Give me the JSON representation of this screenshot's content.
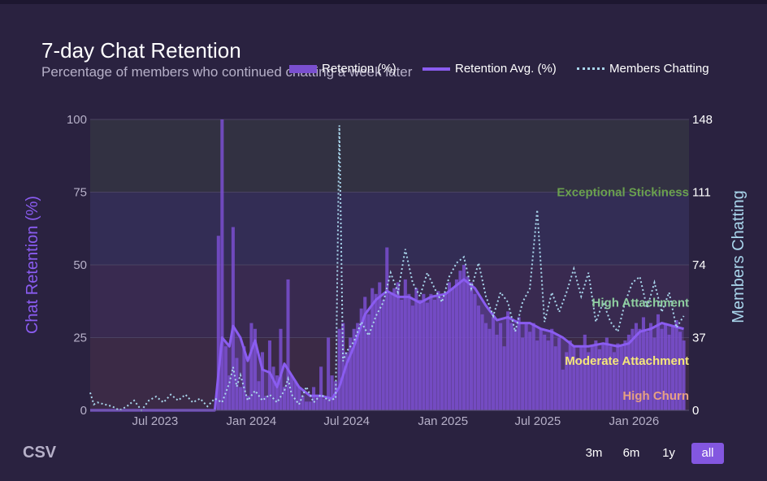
{
  "title": "7-day Chat Retention",
  "subtitle": "Percentage of members who continued chatting a week later",
  "legend": {
    "retention": "Retention (%)",
    "avg": "Retention Avg. (%)",
    "members": "Members Chatting"
  },
  "colors": {
    "background": "#2a2240",
    "bars": "#7a4fd0",
    "avg_line": "#8a5cf0",
    "members_line": "#a9d6ec",
    "exceptional": "#6aa04f",
    "high": "#8fcfa0",
    "moderate": "#f5e77a",
    "churn": "#e7a083"
  },
  "csv_label": "CSV",
  "range_buttons": [
    {
      "label": "3m",
      "active": false
    },
    {
      "label": "6m",
      "active": false
    },
    {
      "label": "1y",
      "active": false
    },
    {
      "label": "all",
      "active": true
    }
  ],
  "chart_data": {
    "type": "bar",
    "ylabel": "Chat Retention (%)",
    "y2label": "Members Chatting",
    "ylim": [
      0,
      100
    ],
    "y2lim": [
      0,
      148
    ],
    "y_ticks": [
      0,
      25,
      50,
      75,
      100
    ],
    "y2_ticks": [
      0,
      37,
      74,
      111,
      148
    ],
    "x_ticks": [
      {
        "date": "2023-07-01",
        "label": "Jul 2023"
      },
      {
        "date": "2024-01-01",
        "label": "Jan 2024"
      },
      {
        "date": "2024-07-01",
        "label": "Jul 2024"
      },
      {
        "date": "2025-01-01",
        "label": "Jan 2025"
      },
      {
        "date": "2025-07-01",
        "label": "Jul 2025"
      },
      {
        "date": "2026-01-01",
        "label": "Jan 2026"
      }
    ],
    "xlim": [
      "2023-02-27",
      "2026-04-16"
    ],
    "bands": [
      {
        "label": "Exceptional Stickiness",
        "y": 75,
        "range": [
          75,
          100
        ]
      },
      {
        "label": "High Attachment",
        "y": 37,
        "range": [
          50,
          75
        ]
      },
      {
        "label": "Moderate Attachment",
        "y": 17,
        "range": [
          25,
          50
        ]
      },
      {
        "label": "High Churn",
        "y": 5,
        "range": [
          0,
          25
        ]
      }
    ],
    "weekly_retention": [
      {
        "date": "2023-10-30",
        "value": 60
      },
      {
        "date": "2023-11-06",
        "value": 100
      },
      {
        "date": "2023-11-13",
        "value": 22
      },
      {
        "date": "2023-11-20",
        "value": 12
      },
      {
        "date": "2023-11-27",
        "value": 63
      },
      {
        "date": "2023-12-04",
        "value": 18
      },
      {
        "date": "2023-12-11",
        "value": 8
      },
      {
        "date": "2023-12-18",
        "value": 22
      },
      {
        "date": "2023-12-25",
        "value": 5
      },
      {
        "date": "2024-01-01",
        "value": 30
      },
      {
        "date": "2024-01-08",
        "value": 28
      },
      {
        "date": "2024-01-15",
        "value": 10
      },
      {
        "date": "2024-01-22",
        "value": 20
      },
      {
        "date": "2024-01-29",
        "value": 5
      },
      {
        "date": "2024-02-05",
        "value": 24
      },
      {
        "date": "2024-02-12",
        "value": 15
      },
      {
        "date": "2024-02-19",
        "value": 12
      },
      {
        "date": "2024-02-26",
        "value": 28
      },
      {
        "date": "2024-03-04",
        "value": 8
      },
      {
        "date": "2024-03-11",
        "value": 45
      },
      {
        "date": "2024-03-18",
        "value": 12
      },
      {
        "date": "2024-03-25",
        "value": 10
      },
      {
        "date": "2024-04-01",
        "value": 8
      },
      {
        "date": "2024-04-08",
        "value": 5
      },
      {
        "date": "2024-04-15",
        "value": 3
      },
      {
        "date": "2024-04-22",
        "value": 3
      },
      {
        "date": "2024-04-29",
        "value": 8
      },
      {
        "date": "2024-05-06",
        "value": 5
      },
      {
        "date": "2024-05-13",
        "value": 15
      },
      {
        "date": "2024-05-20",
        "value": 4
      },
      {
        "date": "2024-05-27",
        "value": 25
      },
      {
        "date": "2024-06-03",
        "value": 12
      },
      {
        "date": "2024-06-10",
        "value": 10
      },
      {
        "date": "2024-06-17",
        "value": 28
      },
      {
        "date": "2024-06-24",
        "value": 30
      },
      {
        "date": "2024-07-01",
        "value": 20
      },
      {
        "date": "2024-07-08",
        "value": 25
      },
      {
        "date": "2024-07-15",
        "value": 28
      },
      {
        "date": "2024-07-22",
        "value": 30
      },
      {
        "date": "2024-07-29",
        "value": 35
      },
      {
        "date": "2024-08-05",
        "value": 39
      },
      {
        "date": "2024-08-12",
        "value": 33
      },
      {
        "date": "2024-08-19",
        "value": 42
      },
      {
        "date": "2024-08-26",
        "value": 40
      },
      {
        "date": "2024-09-02",
        "value": 44
      },
      {
        "date": "2024-09-09",
        "value": 38
      },
      {
        "date": "2024-09-16",
        "value": 56
      },
      {
        "date": "2024-09-23",
        "value": 40
      },
      {
        "date": "2024-09-30",
        "value": 42
      },
      {
        "date": "2024-10-07",
        "value": 44
      },
      {
        "date": "2024-10-14",
        "value": 38
      },
      {
        "date": "2024-10-21",
        "value": 45
      },
      {
        "date": "2024-10-28",
        "value": 40
      },
      {
        "date": "2024-11-04",
        "value": 36
      },
      {
        "date": "2024-11-11",
        "value": 42
      },
      {
        "date": "2024-11-18",
        "value": 38
      },
      {
        "date": "2024-11-25",
        "value": 40
      },
      {
        "date": "2024-12-02",
        "value": 37
      },
      {
        "date": "2024-12-09",
        "value": 40
      },
      {
        "date": "2024-12-16",
        "value": 38
      },
      {
        "date": "2024-12-23",
        "value": 41
      },
      {
        "date": "2024-12-30",
        "value": 39
      },
      {
        "date": "2025-01-06",
        "value": 40
      },
      {
        "date": "2025-01-13",
        "value": 44
      },
      {
        "date": "2025-01-20",
        "value": 42
      },
      {
        "date": "2025-01-27",
        "value": 45
      },
      {
        "date": "2025-02-03",
        "value": 48
      },
      {
        "date": "2025-02-10",
        "value": 50
      },
      {
        "date": "2025-02-17",
        "value": 46
      },
      {
        "date": "2025-02-24",
        "value": 44
      },
      {
        "date": "2025-03-03",
        "value": 40
      },
      {
        "date": "2025-03-10",
        "value": 36
      },
      {
        "date": "2025-03-17",
        "value": 33
      },
      {
        "date": "2025-03-24",
        "value": 30
      },
      {
        "date": "2025-03-31",
        "value": 28
      },
      {
        "date": "2025-04-07",
        "value": 32
      },
      {
        "date": "2025-04-14",
        "value": 26
      },
      {
        "date": "2025-04-21",
        "value": 30
      },
      {
        "date": "2025-04-28",
        "value": 22
      },
      {
        "date": "2025-05-05",
        "value": 34
      },
      {
        "date": "2025-05-12",
        "value": 30
      },
      {
        "date": "2025-05-19",
        "value": 28
      },
      {
        "date": "2025-05-26",
        "value": 32
      },
      {
        "date": "2025-06-02",
        "value": 25
      },
      {
        "date": "2025-06-09",
        "value": 30
      },
      {
        "date": "2025-06-16",
        "value": 27
      },
      {
        "date": "2025-06-23",
        "value": 30
      },
      {
        "date": "2025-06-30",
        "value": 24
      },
      {
        "date": "2025-07-07",
        "value": 28
      },
      {
        "date": "2025-07-14",
        "value": 26
      },
      {
        "date": "2025-07-21",
        "value": 24
      },
      {
        "date": "2025-07-28",
        "value": 28
      },
      {
        "date": "2025-08-04",
        "value": 22
      },
      {
        "date": "2025-08-11",
        "value": 25
      },
      {
        "date": "2025-08-18",
        "value": 14
      },
      {
        "date": "2025-08-25",
        "value": 20
      },
      {
        "date": "2025-09-01",
        "value": 24
      },
      {
        "date": "2025-09-08",
        "value": 22
      },
      {
        "date": "2025-09-15",
        "value": 18
      },
      {
        "date": "2025-09-22",
        "value": 22
      },
      {
        "date": "2025-09-29",
        "value": 26
      },
      {
        "date": "2025-10-06",
        "value": 20
      },
      {
        "date": "2025-10-13",
        "value": 22
      },
      {
        "date": "2025-10-20",
        "value": 24
      },
      {
        "date": "2025-10-27",
        "value": 21
      },
      {
        "date": "2025-11-03",
        "value": 23
      },
      {
        "date": "2025-11-10",
        "value": 25
      },
      {
        "date": "2025-11-17",
        "value": 22
      },
      {
        "date": "2025-11-24",
        "value": 20
      },
      {
        "date": "2025-12-01",
        "value": 23
      },
      {
        "date": "2025-12-08",
        "value": 22
      },
      {
        "date": "2025-12-15",
        "value": 24
      },
      {
        "date": "2025-12-22",
        "value": 26
      },
      {
        "date": "2025-12-29",
        "value": 28
      },
      {
        "date": "2026-01-05",
        "value": 30
      },
      {
        "date": "2026-01-12",
        "value": 28
      },
      {
        "date": "2026-01-19",
        "value": 32
      },
      {
        "date": "2026-01-26",
        "value": 27
      },
      {
        "date": "2026-02-02",
        "value": 30
      },
      {
        "date": "2026-02-09",
        "value": 25
      },
      {
        "date": "2026-02-16",
        "value": 33
      },
      {
        "date": "2026-02-23",
        "value": 28
      },
      {
        "date": "2026-03-02",
        "value": 30
      },
      {
        "date": "2026-03-09",
        "value": 26
      },
      {
        "date": "2026-03-16",
        "value": 29
      },
      {
        "date": "2026-03-23",
        "value": 31
      },
      {
        "date": "2026-03-30",
        "value": 27
      },
      {
        "date": "2026-04-06",
        "value": 24
      }
    ],
    "retention_avg": [
      {
        "date": "2023-02-27",
        "value": 0
      },
      {
        "date": "2023-10-23",
        "value": 0
      },
      {
        "date": "2023-11-06",
        "value": 25
      },
      {
        "date": "2023-11-20",
        "value": 22
      },
      {
        "date": "2023-11-27",
        "value": 29
      },
      {
        "date": "2023-12-11",
        "value": 25
      },
      {
        "date": "2023-12-25",
        "value": 17
      },
      {
        "date": "2024-01-08",
        "value": 24
      },
      {
        "date": "2024-01-22",
        "value": 14
      },
      {
        "date": "2024-02-05",
        "value": 13
      },
      {
        "date": "2024-02-19",
        "value": 8
      },
      {
        "date": "2024-03-04",
        "value": 16
      },
      {
        "date": "2024-03-18",
        "value": 12
      },
      {
        "date": "2024-04-01",
        "value": 8
      },
      {
        "date": "2024-04-22",
        "value": 5
      },
      {
        "date": "2024-05-13",
        "value": 5
      },
      {
        "date": "2024-06-03",
        "value": 4
      },
      {
        "date": "2024-06-17",
        "value": 8
      },
      {
        "date": "2024-07-01",
        "value": 16
      },
      {
        "date": "2024-07-15",
        "value": 22
      },
      {
        "date": "2024-08-05",
        "value": 33
      },
      {
        "date": "2024-08-26",
        "value": 38
      },
      {
        "date": "2024-09-16",
        "value": 41
      },
      {
        "date": "2024-10-07",
        "value": 39
      },
      {
        "date": "2024-10-28",
        "value": 39
      },
      {
        "date": "2024-11-18",
        "value": 37
      },
      {
        "date": "2024-12-09",
        "value": 39
      },
      {
        "date": "2025-01-06",
        "value": 40
      },
      {
        "date": "2025-01-27",
        "value": 43
      },
      {
        "date": "2025-02-10",
        "value": 45
      },
      {
        "date": "2025-03-03",
        "value": 42
      },
      {
        "date": "2025-03-24",
        "value": 36
      },
      {
        "date": "2025-04-14",
        "value": 31
      },
      {
        "date": "2025-05-05",
        "value": 32
      },
      {
        "date": "2025-05-26",
        "value": 30
      },
      {
        "date": "2025-06-16",
        "value": 30
      },
      {
        "date": "2025-07-07",
        "value": 28
      },
      {
        "date": "2025-07-28",
        "value": 27
      },
      {
        "date": "2025-08-18",
        "value": 25
      },
      {
        "date": "2025-09-08",
        "value": 22
      },
      {
        "date": "2025-10-06",
        "value": 22
      },
      {
        "date": "2025-11-03",
        "value": 23
      },
      {
        "date": "2025-12-01",
        "value": 22
      },
      {
        "date": "2025-12-22",
        "value": 23
      },
      {
        "date": "2026-01-12",
        "value": 27
      },
      {
        "date": "2026-02-02",
        "value": 28
      },
      {
        "date": "2026-02-23",
        "value": 30
      },
      {
        "date": "2026-03-16",
        "value": 29
      },
      {
        "date": "2026-04-06",
        "value": 28
      }
    ],
    "members_chatting": [
      {
        "date": "2023-02-27",
        "value": 9
      },
      {
        "date": "2023-03-06",
        "value": 3
      },
      {
        "date": "2023-03-13",
        "value": 4
      },
      {
        "date": "2023-03-27",
        "value": 3
      },
      {
        "date": "2023-04-10",
        "value": 2
      },
      {
        "date": "2023-04-24",
        "value": 0
      },
      {
        "date": "2023-05-08",
        "value": 2
      },
      {
        "date": "2023-05-22",
        "value": 5
      },
      {
        "date": "2023-06-05",
        "value": 0
      },
      {
        "date": "2023-06-19",
        "value": 5
      },
      {
        "date": "2023-07-03",
        "value": 7
      },
      {
        "date": "2023-07-17",
        "value": 4
      },
      {
        "date": "2023-07-31",
        "value": 8
      },
      {
        "date": "2023-08-14",
        "value": 5
      },
      {
        "date": "2023-08-28",
        "value": 8
      },
      {
        "date": "2023-09-11",
        "value": 4
      },
      {
        "date": "2023-09-25",
        "value": 6
      },
      {
        "date": "2023-10-09",
        "value": 2
      },
      {
        "date": "2023-10-23",
        "value": 6
      },
      {
        "date": "2023-11-06",
        "value": 4
      },
      {
        "date": "2023-11-20",
        "value": 14
      },
      {
        "date": "2023-11-27",
        "value": 22
      },
      {
        "date": "2023-12-04",
        "value": 12
      },
      {
        "date": "2023-12-11",
        "value": 18
      },
      {
        "date": "2023-12-25",
        "value": 5
      },
      {
        "date": "2024-01-08",
        "value": 10
      },
      {
        "date": "2024-01-22",
        "value": 5
      },
      {
        "date": "2024-02-05",
        "value": 8
      },
      {
        "date": "2024-02-19",
        "value": 4
      },
      {
        "date": "2024-03-04",
        "value": 10
      },
      {
        "date": "2024-03-11",
        "value": 16
      },
      {
        "date": "2024-03-18",
        "value": 8
      },
      {
        "date": "2024-04-01",
        "value": 3
      },
      {
        "date": "2024-04-15",
        "value": 12
      },
      {
        "date": "2024-04-29",
        "value": 4
      },
      {
        "date": "2024-05-13",
        "value": 8
      },
      {
        "date": "2024-05-27",
        "value": 5
      },
      {
        "date": "2024-06-10",
        "value": 6
      },
      {
        "date": "2024-06-17",
        "value": 145
      },
      {
        "date": "2024-06-24",
        "value": 25
      },
      {
        "date": "2024-07-01",
        "value": 30
      },
      {
        "date": "2024-07-15",
        "value": 35
      },
      {
        "date": "2024-07-29",
        "value": 45
      },
      {
        "date": "2024-08-12",
        "value": 38
      },
      {
        "date": "2024-08-26",
        "value": 48
      },
      {
        "date": "2024-09-09",
        "value": 55
      },
      {
        "date": "2024-09-23",
        "value": 70
      },
      {
        "date": "2024-10-07",
        "value": 60
      },
      {
        "date": "2024-10-21",
        "value": 82
      },
      {
        "date": "2024-11-04",
        "value": 65
      },
      {
        "date": "2024-11-18",
        "value": 58
      },
      {
        "date": "2024-12-02",
        "value": 70
      },
      {
        "date": "2024-12-16",
        "value": 62
      },
      {
        "date": "2024-12-30",
        "value": 55
      },
      {
        "date": "2025-01-13",
        "value": 68
      },
      {
        "date": "2025-01-27",
        "value": 75
      },
      {
        "date": "2025-02-10",
        "value": 78
      },
      {
        "date": "2025-02-24",
        "value": 62
      },
      {
        "date": "2025-03-10",
        "value": 75
      },
      {
        "date": "2025-03-24",
        "value": 58
      },
      {
        "date": "2025-04-07",
        "value": 48
      },
      {
        "date": "2025-04-21",
        "value": 60
      },
      {
        "date": "2025-05-05",
        "value": 55
      },
      {
        "date": "2025-05-19",
        "value": 40
      },
      {
        "date": "2025-06-02",
        "value": 55
      },
      {
        "date": "2025-06-16",
        "value": 62
      },
      {
        "date": "2025-06-30",
        "value": 102
      },
      {
        "date": "2025-07-14",
        "value": 45
      },
      {
        "date": "2025-07-28",
        "value": 60
      },
      {
        "date": "2025-08-11",
        "value": 50
      },
      {
        "date": "2025-08-25",
        "value": 60
      },
      {
        "date": "2025-09-08",
        "value": 72
      },
      {
        "date": "2025-09-22",
        "value": 58
      },
      {
        "date": "2025-10-06",
        "value": 70
      },
      {
        "date": "2025-10-20",
        "value": 45
      },
      {
        "date": "2025-11-03",
        "value": 55
      },
      {
        "date": "2025-11-17",
        "value": 45
      },
      {
        "date": "2025-12-01",
        "value": 40
      },
      {
        "date": "2025-12-15",
        "value": 55
      },
      {
        "date": "2025-12-29",
        "value": 65
      },
      {
        "date": "2026-01-12",
        "value": 68
      },
      {
        "date": "2026-01-26",
        "value": 52
      },
      {
        "date": "2026-02-09",
        "value": 65
      },
      {
        "date": "2026-02-23",
        "value": 50
      },
      {
        "date": "2026-03-09",
        "value": 60
      },
      {
        "date": "2026-03-23",
        "value": 42
      },
      {
        "date": "2026-04-06",
        "value": 48
      }
    ]
  }
}
